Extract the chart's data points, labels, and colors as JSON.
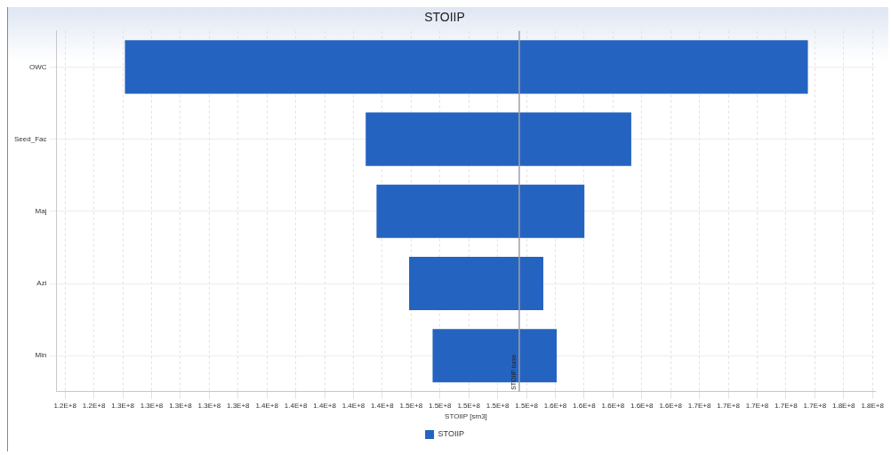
{
  "chart_data": {
    "type": "bar",
    "orientation": "horizontal",
    "title": "STOIIP",
    "xlabel": "STOIIP [sm3]",
    "categories": [
      "OWC",
      "Seed_Fac",
      "Maj",
      "Azi",
      "Min"
    ],
    "series": [
      {
        "name": "STOIIP",
        "color": "#2563c0",
        "values": [
          47370000,
          18420000,
          14420000,
          9310000,
          8610000
        ],
        "base": [
          126150000,
          142850000,
          143600000,
          145860000,
          147490000
        ]
      }
    ],
    "xlim": [
      121400000,
      178200000
    ],
    "xticks": [
      {
        "value": 122000000,
        "label": "1.2E+8"
      },
      {
        "value": 124000000,
        "label": "1.2E+8"
      },
      {
        "value": 126000000,
        "label": "1.3E+8"
      },
      {
        "value": 128000000,
        "label": "1.3E+8"
      },
      {
        "value": 130000000,
        "label": "1.3E+8"
      },
      {
        "value": 132000000,
        "label": "1.3E+8"
      },
      {
        "value": 134000000,
        "label": "1.3E+8"
      },
      {
        "value": 136000000,
        "label": "1.4E+8"
      },
      {
        "value": 138000000,
        "label": "1.4E+8"
      },
      {
        "value": 140000000,
        "label": "1.4E+8"
      },
      {
        "value": 142000000,
        "label": "1.4E+8"
      },
      {
        "value": 144000000,
        "label": "1.4E+8"
      },
      {
        "value": 146000000,
        "label": "1.5E+8"
      },
      {
        "value": 148000000,
        "label": "1.5E+8"
      },
      {
        "value": 150000000,
        "label": "1.5E+8"
      },
      {
        "value": 152000000,
        "label": "1.5E+8"
      },
      {
        "value": 154000000,
        "label": "1.5E+8"
      },
      {
        "value": 156000000,
        "label": "1.6E+8"
      },
      {
        "value": 158000000,
        "label": "1.6E+8"
      },
      {
        "value": 160000000,
        "label": "1.6E+8"
      },
      {
        "value": 162000000,
        "label": "1.6E+8"
      },
      {
        "value": 164000000,
        "label": "1.6E+8"
      },
      {
        "value": 166000000,
        "label": "1.7E+8"
      },
      {
        "value": 168000000,
        "label": "1.7E+8"
      },
      {
        "value": 170000000,
        "label": "1.7E+8"
      },
      {
        "value": 172000000,
        "label": "1.7E+8"
      },
      {
        "value": 174000000,
        "label": "1.7E+8"
      },
      {
        "value": 176000000,
        "label": "1.8E+8"
      },
      {
        "value": 178000000,
        "label": "1.8E+8"
      }
    ],
    "ref_lines": [
      {
        "axis": "x",
        "value": 153500000,
        "label": "STOIIP base",
        "color": "#a0a0a8"
      }
    ],
    "grid": true,
    "legend": "bottom"
  }
}
